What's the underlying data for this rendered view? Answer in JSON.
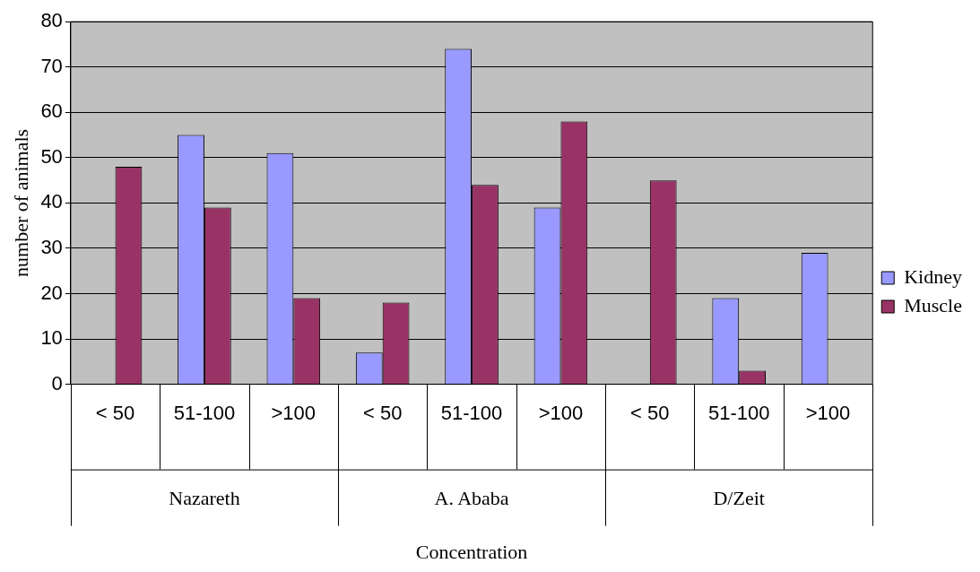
{
  "chart_data": {
    "type": "bar",
    "ylabel": "number of animals",
    "categories": [
      "< 50",
      "51-100",
      ">100",
      "< 50",
      "51-100",
      ">100",
      "< 50",
      "51-100",
      ">100"
    ],
    "series": [
      {
        "name": "Kidney",
        "color": "#9999ff",
        "values": [
          null,
          55,
          51,
          7,
          74,
          39,
          null,
          19,
          29
        ]
      },
      {
        "name": "Muscle",
        "color": "#993366",
        "values": [
          48,
          39,
          19,
          18,
          44,
          58,
          45,
          3,
          null
        ]
      }
    ],
    "annotations": [
      "Nazareth",
      "A. Ababa",
      "D/Zeit",
      "Concentration"
    ],
    "ylim": [
      0,
      80
    ],
    "yticks": [
      0,
      10,
      20,
      30,
      40,
      50,
      60,
      70,
      80
    ],
    "grid": "y",
    "legend": "right"
  }
}
